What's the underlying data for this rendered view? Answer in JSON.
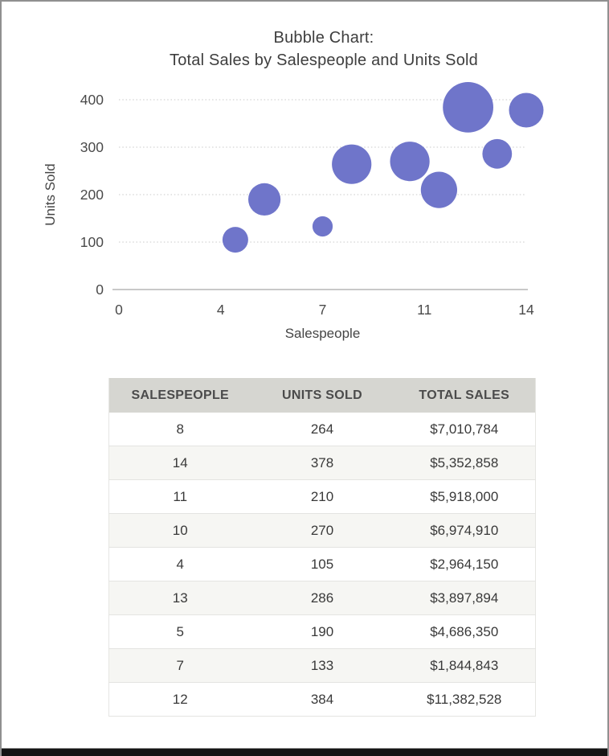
{
  "frame": {
    "border_color": "#909090",
    "bottom_bar_color": "#141414"
  },
  "chart": {
    "title_line1": "Bubble Chart:",
    "title_line2": "Total Sales by Salespeople and Units Sold",
    "x_axis_label": "Salespeople",
    "y_axis_label": "Units Sold",
    "x_tick_labels": [
      "0",
      "4",
      "7",
      "11",
      "14"
    ],
    "y_tick_labels": [
      "0",
      "100",
      "200",
      "300",
      "400"
    ],
    "bubble_color": "#6f75ca",
    "gridline_color": "#c9c9c9",
    "axis_line_color": "#a9a9a9"
  },
  "chart_data": {
    "type": "scatter",
    "subtype": "bubble",
    "title": "Bubble Chart: Total Sales by Salespeople and Units Sold",
    "xlabel": "Salespeople",
    "ylabel": "Units Sold",
    "xlim": [
      0,
      14
    ],
    "ylim": [
      0,
      400
    ],
    "x_ticks": [
      0,
      4,
      7,
      11,
      14
    ],
    "y_ticks": [
      0,
      100,
      200,
      300,
      400
    ],
    "grid": "horizontal-dotted",
    "legend": "none",
    "size_encodes": "total_sales",
    "points": [
      {
        "x": 8,
        "y": 264,
        "size": 7010784
      },
      {
        "x": 14,
        "y": 378,
        "size": 5352858
      },
      {
        "x": 11,
        "y": 210,
        "size": 5918000
      },
      {
        "x": 10,
        "y": 270,
        "size": 6974910
      },
      {
        "x": 4,
        "y": 105,
        "size": 2964150
      },
      {
        "x": 13,
        "y": 286,
        "size": 3897894
      },
      {
        "x": 5,
        "y": 190,
        "size": 4686350
      },
      {
        "x": 7,
        "y": 133,
        "size": 1844843
      },
      {
        "x": 12,
        "y": 384,
        "size": 11382528
      }
    ]
  },
  "table": {
    "headers": [
      "SALESPEOPLE",
      "UNITS SOLD",
      "TOTAL SALES"
    ],
    "header_bg": "#d6d6d1",
    "rows": [
      [
        "8",
        "264",
        "$7,010,784"
      ],
      [
        "14",
        "378",
        "$5,352,858"
      ],
      [
        "11",
        "210",
        "$5,918,000"
      ],
      [
        "10",
        "270",
        "$6,974,910"
      ],
      [
        "4",
        "105",
        "$2,964,150"
      ],
      [
        "13",
        "286",
        "$3,897,894"
      ],
      [
        "5",
        "190",
        "$4,686,350"
      ],
      [
        "7",
        "133",
        "$1,844,843"
      ],
      [
        "12",
        "384",
        "$11,382,528"
      ]
    ]
  }
}
